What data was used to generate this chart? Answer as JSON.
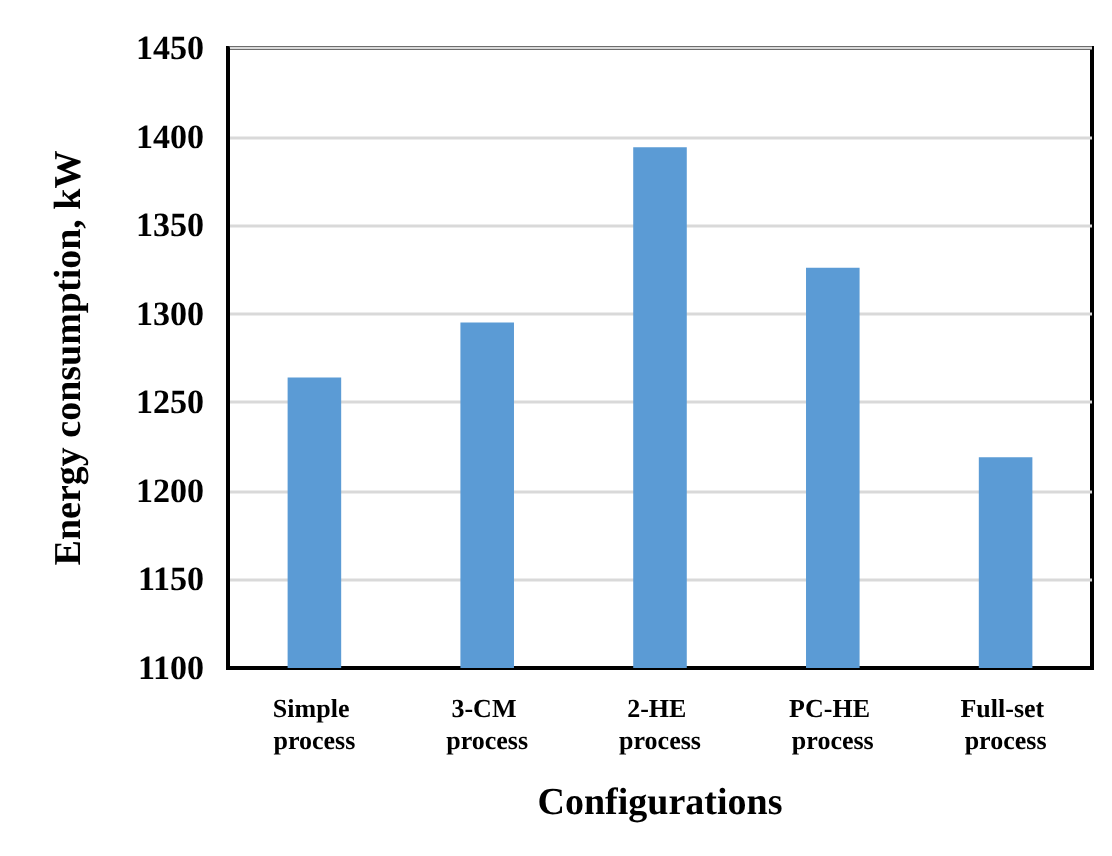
{
  "chart_data": {
    "type": "bar",
    "xlabel": "Configurations",
    "ylabel": "Energy consumption, kW",
    "categories": [
      "Simple process",
      "3-CM process",
      "2-HE process",
      "PC-HE process",
      "Full-set process"
    ],
    "values": [
      1264,
      1295,
      1394,
      1326,
      1219
    ],
    "color": "#5b9bd5",
    "ylim": [
      1100,
      1450
    ],
    "yticks": [
      1100,
      1150,
      1200,
      1250,
      1300,
      1350,
      1400,
      1450
    ],
    "grid": "y"
  }
}
